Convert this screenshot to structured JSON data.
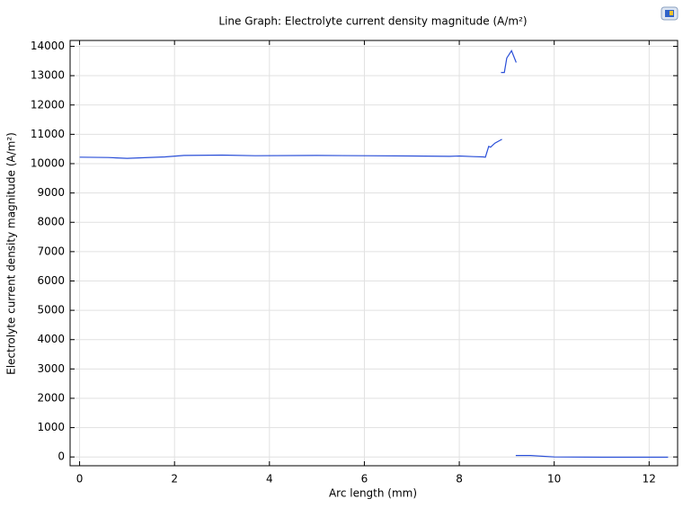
{
  "chart_data": {
    "type": "line",
    "title": "Line Graph: Electrolyte current density magnitude (A/m²)",
    "x_label": "Arc length (mm)",
    "y_label": "Electrolyte current density magnitude (A/m²)",
    "x": [
      0,
      0.6,
      1.0,
      1.8,
      2.2,
      3.0,
      3.7,
      5.0,
      6.0,
      7.0,
      7.8,
      8.0,
      8.3,
      8.5,
      8.55,
      8.62,
      8.66,
      8.75,
      8.9,
      null,
      8.88,
      8.95,
      9.0,
      9.1,
      9.2,
      null,
      9.19,
      9.5,
      10.0,
      11.0,
      12.4
    ],
    "series": [
      {
        "name": "Electrolyte current density magnitude",
        "color": "#2a4fd8",
        "values": [
          10220,
          10210,
          10180,
          10230,
          10280,
          10290,
          10270,
          10280,
          10270,
          10260,
          10250,
          10260,
          10240,
          10230,
          10220,
          10590,
          10560,
          10700,
          10830,
          null,
          13110,
          13110,
          13600,
          13850,
          13450,
          null,
          50,
          50,
          0,
          -10,
          -10
        ]
      }
    ],
    "xlim": [
      -0.2,
      12.6
    ],
    "ylim": [
      -300,
      14200
    ],
    "xticks": [
      0,
      2,
      4,
      6,
      8,
      10,
      12
    ],
    "yticks": [
      0,
      1000,
      2000,
      3000,
      4000,
      5000,
      6000,
      7000,
      8000,
      9000,
      10000,
      11000,
      12000,
      13000,
      14000
    ],
    "grid": true
  }
}
